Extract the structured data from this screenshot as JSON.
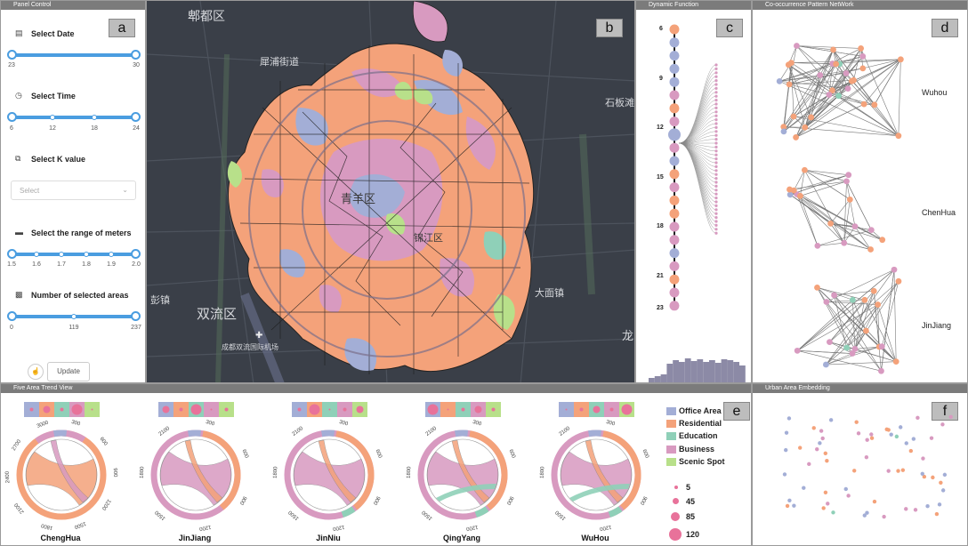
{
  "panels": {
    "control": {
      "title": "Panel Control",
      "tag": "a"
    },
    "map": {
      "tag": "b"
    },
    "dynamic": {
      "title": "Dynamic Function",
      "tag": "c"
    },
    "network": {
      "title": "Co-occurrence Pattern NetWork",
      "tag": "d"
    },
    "trend": {
      "title": "Five Area Trend View",
      "tag": "e"
    },
    "embedding": {
      "title": "Urban Area Embedding",
      "tag": "f"
    }
  },
  "controls": {
    "date": {
      "label": "Select Date",
      "min": "23",
      "max": "30"
    },
    "time": {
      "label": "Select Time",
      "ticks": [
        "6",
        "12",
        "18",
        "24"
      ]
    },
    "k": {
      "label": "Select K value",
      "placeholder": "Select"
    },
    "meters": {
      "label": "Select the range of meters",
      "ticks": [
        "1.5",
        "1.6",
        "1.7",
        "1.8",
        "1.9",
        "2.0"
      ]
    },
    "areas": {
      "label": "Number of selected areas",
      "ticks": [
        "0",
        "119",
        "237"
      ]
    },
    "update_label": "Update"
  },
  "map_labels": {
    "l1": "郫都区",
    "l2": "犀浦街道",
    "l3": "石板滩",
    "l4": "双流区",
    "l5": "彭镇",
    "l6": "成都双流国际机场",
    "l7": "大面镇",
    "l8": "龙",
    "l9": "青羊区",
    "l10": "锦江区"
  },
  "timeline": {
    "hours": [
      "6",
      "9",
      "12",
      "15",
      "18",
      "21",
      "23"
    ]
  },
  "network": {
    "groups": [
      "Wuhou",
      "ChenHua",
      "JinJiang"
    ]
  },
  "legend": {
    "types": [
      {
        "label": "Office Area",
        "color": "#a3aed6"
      },
      {
        "label": "Residential",
        "color": "#f4a27a"
      },
      {
        "label": "Education",
        "color": "#8fd0b8"
      },
      {
        "label": "Business",
        "color": "#d89ac0"
      },
      {
        "label": "Scenic Spot",
        "color": "#b8e08a"
      }
    ],
    "sizes": [
      "5",
      "45",
      "85",
      "120"
    ]
  },
  "chords": [
    {
      "name": "ChengHua",
      "ticks": [
        "300",
        "600",
        "900",
        "1200",
        "1500",
        "1800",
        "2100",
        "2400",
        "2700",
        "3000"
      ]
    },
    {
      "name": "JinJiang",
      "ticks": [
        "300",
        "600",
        "900",
        "1200",
        "1500",
        "1800",
        "2100"
      ]
    },
    {
      "name": "JinNiu",
      "ticks": [
        "300",
        "600",
        "900",
        "1200",
        "1500",
        "1800",
        "2100"
      ]
    },
    {
      "name": "QingYang",
      "ticks": [
        "300",
        "600",
        "900",
        "1200",
        "1500",
        "1800",
        "2100"
      ]
    },
    {
      "name": "WuHou",
      "ticks": [
        "300",
        "600",
        "900",
        "1200",
        "1500",
        "1800",
        "2100"
      ]
    }
  ],
  "colors": {
    "office": "#a3aed6",
    "residential": "#f4a27a",
    "education": "#8fd0b8",
    "business": "#d89ac0",
    "scenic": "#b8e08a",
    "slider": "#4a9de0",
    "map_bg": "#3a3f48"
  }
}
